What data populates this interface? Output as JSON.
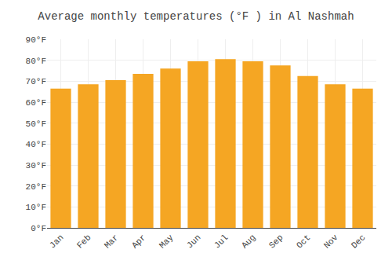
{
  "chart_data": {
    "type": "bar",
    "title": "Average monthly temperatures (°F ) in Al Nashmah",
    "categories": [
      "Jan",
      "Feb",
      "Mar",
      "Apr",
      "May",
      "Jun",
      "Jul",
      "Aug",
      "Sep",
      "Oct",
      "Nov",
      "Dec"
    ],
    "values": [
      66.5,
      68.5,
      70.5,
      73.5,
      76.0,
      79.5,
      80.5,
      79.5,
      77.5,
      72.5,
      68.5,
      66.5
    ],
    "color": "#F5A623",
    "ylim": [
      0,
      90
    ],
    "yticks": [
      {
        "value": 0,
        "label": "0°F"
      },
      {
        "value": 10,
        "label": "10°F"
      },
      {
        "value": 20,
        "label": "20°F"
      },
      {
        "value": 30,
        "label": "30°F"
      },
      {
        "value": 40,
        "label": "40°F"
      },
      {
        "value": 50,
        "label": "50°F"
      },
      {
        "value": 60,
        "label": "60°F"
      },
      {
        "value": 70,
        "label": "70°F"
      },
      {
        "value": 80,
        "label": "80°F"
      },
      {
        "value": 90,
        "label": "90°F"
      }
    ],
    "grid": true
  }
}
